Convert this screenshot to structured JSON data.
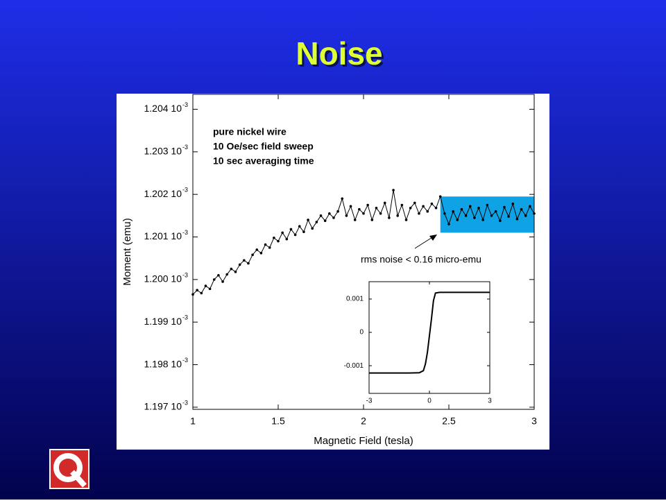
{
  "title": "Noise",
  "chart_data": [
    {
      "type": "line",
      "xlabel": "Magnetic Field (tesla)",
      "ylabel": "Moment (emu)",
      "annotations": [
        "pure nickel wire",
        "10 Oe/sec field sweep",
        "10 sec averaging time"
      ],
      "note": "rms noise < 0.16 micro-emu",
      "highlight": {
        "xlim": [
          2.45,
          3
        ],
        "ylim": [
          0.0012011,
          0.00120195
        ],
        "color": "#0fa3e6"
      },
      "xlim": [
        1,
        3
      ],
      "xticks": [
        1,
        1.5,
        2,
        2.5,
        3
      ],
      "ylim": [
        0.00119695,
        0.00120435
      ],
      "yticks": [
        {
          "value": 0.001197,
          "label": "1.197 10",
          "exponent": "-3"
        },
        {
          "value": 0.001198,
          "label": "1.198 10",
          "exponent": "-3"
        },
        {
          "value": 0.001199,
          "label": "1.199 10",
          "exponent": "-3"
        },
        {
          "value": 0.0012,
          "label": "1.200 10",
          "exponent": "-3"
        },
        {
          "value": 0.001201,
          "label": "1.201 10",
          "exponent": "-3"
        },
        {
          "value": 0.001202,
          "label": "1.202 10",
          "exponent": "-3"
        },
        {
          "value": 0.001203,
          "label": "1.203 10",
          "exponent": "-3"
        },
        {
          "value": 0.001204,
          "label": "1.204 10",
          "exponent": "-3"
        }
      ],
      "x": [
        1,
        1.025,
        1.05,
        1.075,
        1.1,
        1.125,
        1.15,
        1.175,
        1.2,
        1.225,
        1.25,
        1.275,
        1.3,
        1.325,
        1.35,
        1.375,
        1.4,
        1.425,
        1.45,
        1.475,
        1.5,
        1.525,
        1.55,
        1.575,
        1.6,
        1.625,
        1.65,
        1.675,
        1.7,
        1.725,
        1.75,
        1.775,
        1.8,
        1.825,
        1.85,
        1.875,
        1.9,
        1.925,
        1.95,
        1.975,
        2,
        2.025,
        2.05,
        2.075,
        2.1,
        2.125,
        2.15,
        2.175,
        2.2,
        2.225,
        2.25,
        2.275,
        2.3,
        2.325,
        2.35,
        2.375,
        2.4,
        2.425,
        2.45,
        2.475,
        2.5,
        2.525,
        2.55,
        2.575,
        2.6,
        2.625,
        2.65,
        2.675,
        2.7,
        2.725,
        2.75,
        2.775,
        2.8,
        2.825,
        2.85,
        2.875,
        2.9,
        2.925,
        2.95,
        2.975,
        3
      ],
      "series": [
        {
          "color": "#000000",
          "values": [
            0.00119965,
            0.00119975,
            0.00119968,
            0.00119985,
            0.00119978,
            0.0012,
            0.0012001,
            0.00119995,
            0.00120012,
            0.00120025,
            0.00120018,
            0.00120035,
            0.00120045,
            0.00120038,
            0.00120058,
            0.0012007,
            0.00120062,
            0.00120082,
            0.00120075,
            0.00120098,
            0.0012009,
            0.0012011,
            0.00120095,
            0.00120118,
            0.00120105,
            0.00120125,
            0.00120112,
            0.0012014,
            0.0012012,
            0.00120135,
            0.0012015,
            0.00120138,
            0.00120155,
            0.00120145,
            0.0012016,
            0.0012019,
            0.0012015,
            0.00120172,
            0.0012014,
            0.00120165,
            0.00120155,
            0.00120175,
            0.0012014,
            0.00120168,
            0.00120155,
            0.0012018,
            0.00120145,
            0.0012021,
            0.0012015,
            0.00120175,
            0.0012014,
            0.00120168,
            0.0012018,
            0.00120155,
            0.00120172,
            0.0012016,
            0.00120178,
            0.00120168,
            0.00120195,
            0.00120155,
            0.0012013,
            0.0012016,
            0.0012014,
            0.00120165,
            0.0012015,
            0.00120172,
            0.00120145,
            0.00120168,
            0.0012014,
            0.00120175,
            0.0012015,
            0.0012016,
            0.00120138,
            0.0012017,
            0.00120148,
            0.00120178,
            0.00120142,
            0.00120165,
            0.0012015,
            0.00120172,
            0.00120155
          ]
        }
      ]
    },
    {
      "type": "line",
      "xlim": [
        -3,
        3
      ],
      "xticks": [
        -3,
        0,
        3
      ],
      "ylim": [
        -0.00183,
        0.00152
      ],
      "yticks": [
        0.001,
        0,
        -0.001
      ],
      "x": [
        -3,
        -2,
        -1,
        -0.5,
        -0.3,
        -0.2,
        -0.1,
        0,
        0.1,
        0.2,
        0.3,
        0.5,
        1,
        2,
        3
      ],
      "series": [
        {
          "color": "#000000",
          "values": [
            -0.00122,
            -0.00122,
            -0.00122,
            -0.00121,
            -0.00115,
            -0.00095,
            -0.0006,
            -0.0001,
            0.0004,
            0.00095,
            0.00118,
            0.0012,
            0.0012,
            0.0012,
            0.0012
          ]
        }
      ]
    }
  ]
}
